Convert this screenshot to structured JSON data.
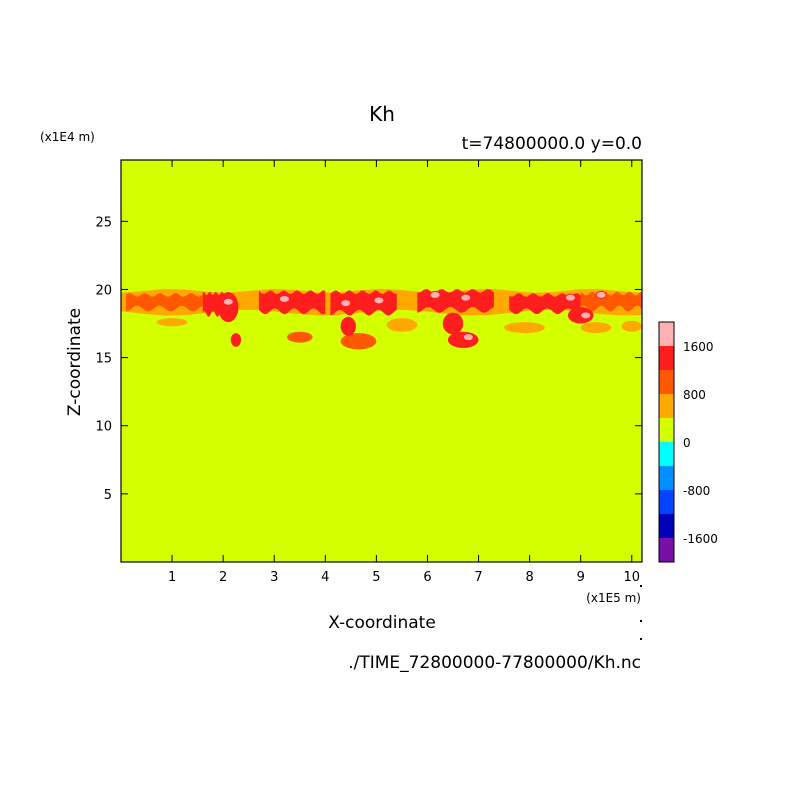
{
  "chart_data": {
    "type": "heatmap",
    "title": "Kh",
    "subtitle": "t=74800000.0 y=0.0",
    "xlabel": "X-coordinate",
    "ylabel": "Z-coordinate",
    "x_unit": "(x1E5 m)",
    "y_unit": "(x1E4 m)",
    "footer": "./TIME_72800000-77800000/Kh.nc",
    "xlim": [
      0,
      10.2
    ],
    "ylim": [
      0,
      29.5
    ],
    "x_ticks": [
      1,
      2,
      3,
      4,
      5,
      6,
      7,
      8,
      9,
      10
    ],
    "y_ticks": [
      5,
      10,
      15,
      20,
      25
    ],
    "background_value": 0,
    "background_color": "#d4ff00",
    "colorbar": {
      "levels": [
        {
          "min": -2000,
          "max": -1600,
          "color": "#7a0fa8"
        },
        {
          "min": -1600,
          "max": -1200,
          "color": "#0000b8"
        },
        {
          "min": -1200,
          "max": -800,
          "color": "#0044ff"
        },
        {
          "min": -800,
          "max": -400,
          "color": "#0090ff"
        },
        {
          "min": -400,
          "max": 0,
          "color": "#00ffff"
        },
        {
          "min": 0,
          "max": 400,
          "color": "#d4ff00"
        },
        {
          "min": 400,
          "max": 800,
          "color": "#ffa800"
        },
        {
          "min": 800,
          "max": 1200,
          "color": "#ff5800"
        },
        {
          "min": 1200,
          "max": 1600,
          "color": "#ff1e1e"
        },
        {
          "min": 1600,
          "max": 2000,
          "color": "#ffb2b2"
        }
      ],
      "tick_labels": [
        "1600",
        "800",
        "0",
        "-800",
        "-1600"
      ],
      "tick_values": [
        1600,
        800,
        0,
        -800,
        -1600
      ]
    },
    "features": [
      {
        "type": "band",
        "x": [
          0,
          10.2
        ],
        "z": [
          18.3,
          19.9
        ],
        "value": 600
      },
      {
        "type": "band",
        "x": [
          0.1,
          1.6
        ],
        "z": [
          18.6,
          19.6
        ],
        "value": 1000
      },
      {
        "type": "band",
        "x": [
          1.6,
          2.2
        ],
        "z": [
          18.2,
          19.7
        ],
        "value": 1400
      },
      {
        "type": "band",
        "x": [
          2.7,
          4.0
        ],
        "z": [
          18.4,
          19.8
        ],
        "value": 1400
      },
      {
        "type": "band",
        "x": [
          4.1,
          5.4
        ],
        "z": [
          18.3,
          19.8
        ],
        "value": 1300
      },
      {
        "type": "band",
        "x": [
          5.8,
          7.3
        ],
        "z": [
          18.5,
          19.9
        ],
        "value": 1500
      },
      {
        "type": "band",
        "x": [
          7.6,
          9.0
        ],
        "z": [
          18.4,
          19.6
        ],
        "value": 1200
      },
      {
        "type": "band",
        "x": [
          9.0,
          10.2
        ],
        "z": [
          18.6,
          19.7
        ],
        "value": 1100
      },
      {
        "type": "blob",
        "x": 2.1,
        "z": 18.7,
        "rx": 0.2,
        "rz": 1.1,
        "value": 1400
      },
      {
        "type": "blob",
        "x": 2.25,
        "z": 16.3,
        "rx": 0.1,
        "rz": 0.5,
        "value": 1300
      },
      {
        "type": "blob",
        "x": 3.5,
        "z": 16.5,
        "rx": 0.25,
        "rz": 0.4,
        "value": 1000
      },
      {
        "type": "blob",
        "x": 4.65,
        "z": 16.2,
        "rx": 0.35,
        "rz": 0.6,
        "value": 900
      },
      {
        "type": "blob",
        "x": 4.45,
        "z": 17.3,
        "rx": 0.15,
        "rz": 0.7,
        "value": 1300
      },
      {
        "type": "blob",
        "x": 5.5,
        "z": 17.4,
        "rx": 0.3,
        "rz": 0.5,
        "value": 700
      },
      {
        "type": "blob",
        "x": 6.7,
        "z": 16.3,
        "rx": 0.3,
        "rz": 0.6,
        "value": 1300
      },
      {
        "type": "blob",
        "x": 6.5,
        "z": 17.5,
        "rx": 0.2,
        "rz": 0.8,
        "value": 1200
      },
      {
        "type": "blob",
        "x": 7.9,
        "z": 17.2,
        "rx": 0.4,
        "rz": 0.4,
        "value": 700
      },
      {
        "type": "blob",
        "x": 9.0,
        "z": 18.1,
        "rx": 0.25,
        "rz": 0.6,
        "value": 1300
      },
      {
        "type": "blob",
        "x": 9.3,
        "z": 17.2,
        "rx": 0.3,
        "rz": 0.4,
        "value": 600
      },
      {
        "type": "blob",
        "x": 10.0,
        "z": 17.3,
        "rx": 0.2,
        "rz": 0.4,
        "value": 700
      },
      {
        "type": "blob",
        "x": 1.0,
        "z": 17.6,
        "rx": 0.3,
        "rz": 0.3,
        "value": 600
      },
      {
        "type": "peak",
        "x": 2.1,
        "z": 19.1,
        "value": 1800
      },
      {
        "type": "peak",
        "x": 3.2,
        "z": 19.3,
        "value": 1800
      },
      {
        "type": "peak",
        "x": 4.4,
        "z": 19.0,
        "value": 1800
      },
      {
        "type": "peak",
        "x": 5.05,
        "z": 19.2,
        "value": 1800
      },
      {
        "type": "peak",
        "x": 6.15,
        "z": 19.6,
        "value": 1800
      },
      {
        "type": "peak",
        "x": 6.75,
        "z": 19.4,
        "value": 1900
      },
      {
        "type": "peak",
        "x": 6.8,
        "z": 16.5,
        "value": 1800
      },
      {
        "type": "peak",
        "x": 8.8,
        "z": 19.4,
        "value": 1800
      },
      {
        "type": "peak",
        "x": 9.1,
        "z": 18.1,
        "value": 1900
      },
      {
        "type": "peak",
        "x": 9.4,
        "z": 19.6,
        "value": 1700
      }
    ]
  }
}
